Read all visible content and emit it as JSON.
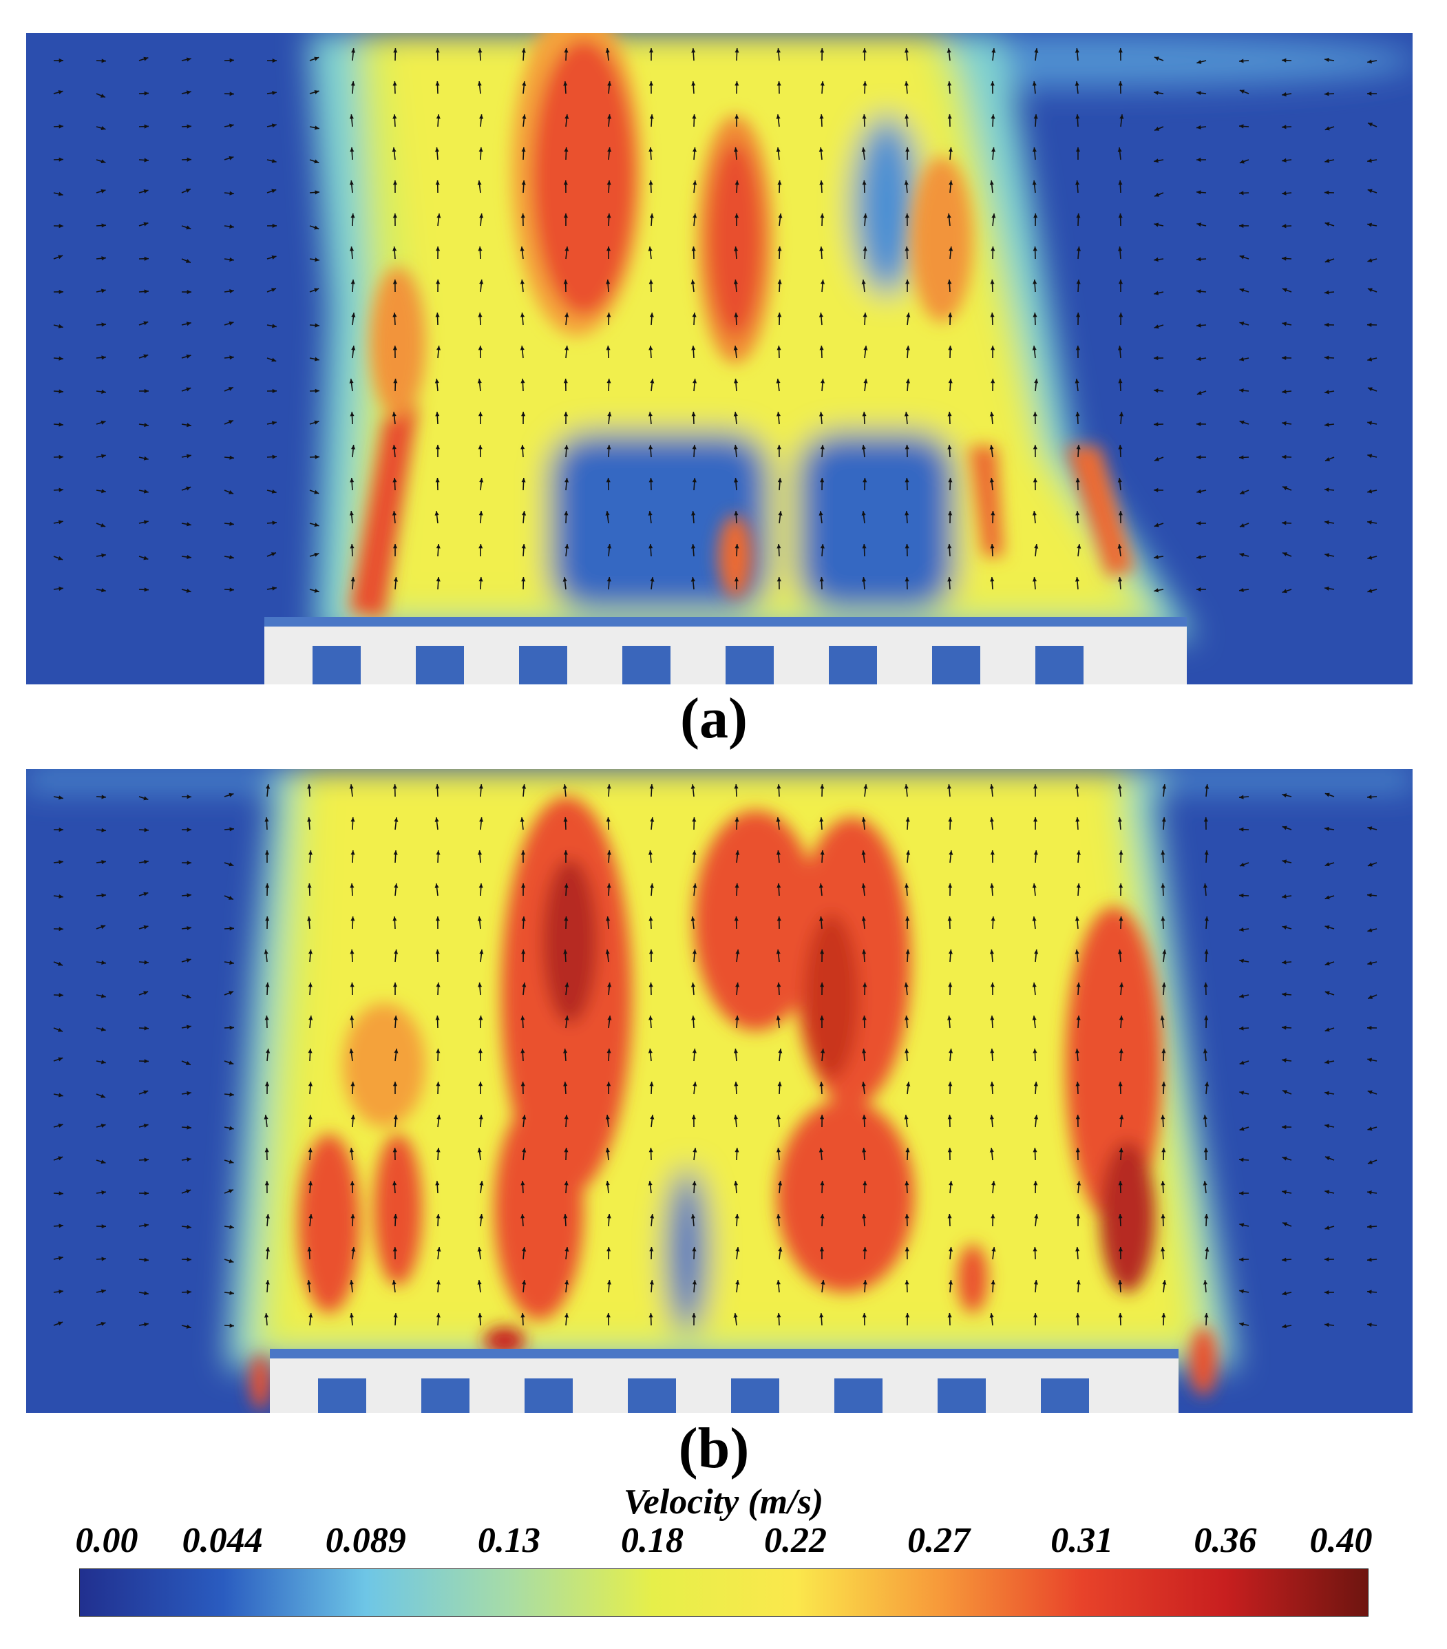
{
  "panels": [
    {
      "label": "(a)"
    },
    {
      "label": "(b)"
    }
  ],
  "colorbar": {
    "title": "Velocity (m/s)",
    "ticks": [
      "0.00",
      "0.044",
      "0.089",
      "0.13",
      "0.18",
      "0.22",
      "0.27",
      "0.31",
      "0.36",
      "0.40"
    ],
    "range": [
      0,
      0.4
    ],
    "colors": [
      "#21308f",
      "#2a5cc0",
      "#6ec6e6",
      "#a7dca7",
      "#e6ef4a",
      "#fbe84c",
      "#f79a3a",
      "#e8432a",
      "#c81f1f",
      "#6e1510"
    ]
  }
}
